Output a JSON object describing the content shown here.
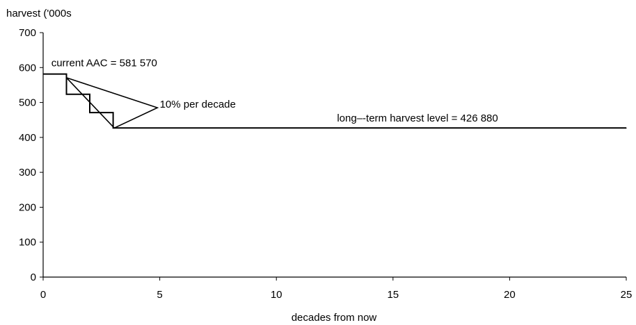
{
  "chart_data": {
    "type": "line",
    "ylabel": "harvest ('000s",
    "xlabel": "decades from now",
    "xlim": [
      0,
      25
    ],
    "ylim": [
      0,
      700
    ],
    "xticks": [
      0,
      5,
      10,
      15,
      20,
      25
    ],
    "yticks": [
      0,
      100,
      200,
      300,
      400,
      500,
      600,
      700
    ],
    "grid": false,
    "series": [
      {
        "style": "step",
        "color": "#000000",
        "x": [
          0,
          1,
          1,
          2,
          2,
          3,
          3,
          25
        ],
        "y": [
          581.57,
          581.57,
          523.4,
          523.4,
          471.1,
          471.1,
          426.88,
          426.88
        ]
      }
    ],
    "annotations": [
      {
        "text": "current AAC = 581 570",
        "x": 0.35,
        "y": 604
      },
      {
        "text": "10% per decade",
        "x": 5.0,
        "y": 485
      },
      {
        "text": "long–-term harvest level = 426 880",
        "x": 12.6,
        "y": 445
      }
    ],
    "callout_triangle": {
      "points": [
        [
          1,
          571
        ],
        [
          4.9,
          485
        ],
        [
          3.05,
          426.88
        ]
      ]
    }
  }
}
